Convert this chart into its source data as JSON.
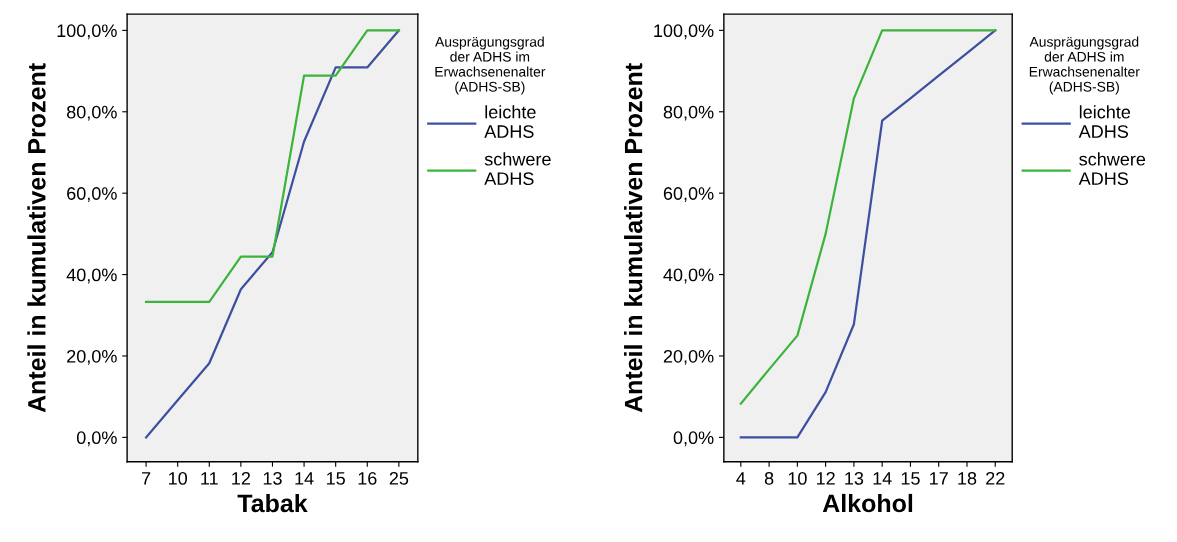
{
  "chart_data": [
    {
      "type": "line",
      "xlabel": "Tabak",
      "ylabel": "Anteil in kumulativen Prozent",
      "legend_title": "Ausprägungsgrad\nder ADHS im\nErwachsenenalter\n(ADHS-SB)",
      "legend": "right",
      "grid": false,
      "marker": "none",
      "line_style": "solid",
      "categories": [
        "7",
        "10",
        "11",
        "12",
        "13",
        "14",
        "15",
        "16",
        "25"
      ],
      "ylim": [
        -6,
        104
      ],
      "yticks": [
        {
          "value": 0,
          "label": "0,0%"
        },
        {
          "value": 20,
          "label": "20,0%"
        },
        {
          "value": 40,
          "label": "40,0%"
        },
        {
          "value": 60,
          "label": "60,0%"
        },
        {
          "value": 80,
          "label": "80,0%"
        },
        {
          "value": 100,
          "label": "100,0%"
        }
      ],
      "series": [
        {
          "name": "leichte\nADHS",
          "color": "#3c4fa0",
          "values": [
            0,
            9.1,
            18.2,
            36.4,
            45.5,
            72.7,
            90.9,
            90.9,
            100
          ]
        },
        {
          "name": "schwere\nADHS",
          "color": "#3cb43c",
          "values": [
            33.3,
            33.3,
            33.3,
            44.4,
            44.4,
            88.9,
            88.9,
            100,
            100
          ]
        }
      ]
    },
    {
      "type": "line",
      "xlabel": "Alkohol",
      "ylabel": "Anteil in kumulativen Prozent",
      "legend_title": "Ausprägungsgrad\nder ADHS im\nErwachsenenalter\n(ADHS-SB)",
      "legend": "right",
      "grid": false,
      "marker": "none",
      "line_style": "solid",
      "categories": [
        "4",
        "8",
        "10",
        "12",
        "13",
        "14",
        "15",
        "17",
        "18",
        "22"
      ],
      "ylim": [
        -6,
        104
      ],
      "yticks": [
        {
          "value": 0,
          "label": "0,0%"
        },
        {
          "value": 20,
          "label": "20,0%"
        },
        {
          "value": 40,
          "label": "40,0%"
        },
        {
          "value": 60,
          "label": "60,0%"
        },
        {
          "value": 80,
          "label": "80,0%"
        },
        {
          "value": 100,
          "label": "100,0%"
        }
      ],
      "series": [
        {
          "name": "leichte\nADHS",
          "color": "#3c4fa0",
          "values": [
            0,
            0,
            0,
            11.1,
            27.8,
            77.8,
            83.3,
            88.9,
            94.4,
            100
          ]
        },
        {
          "name": "schwere\nADHS",
          "color": "#3cb43c",
          "values": [
            8.3,
            16.7,
            25,
            50,
            83.3,
            100,
            100,
            100,
            100,
            100
          ]
        }
      ]
    }
  ]
}
